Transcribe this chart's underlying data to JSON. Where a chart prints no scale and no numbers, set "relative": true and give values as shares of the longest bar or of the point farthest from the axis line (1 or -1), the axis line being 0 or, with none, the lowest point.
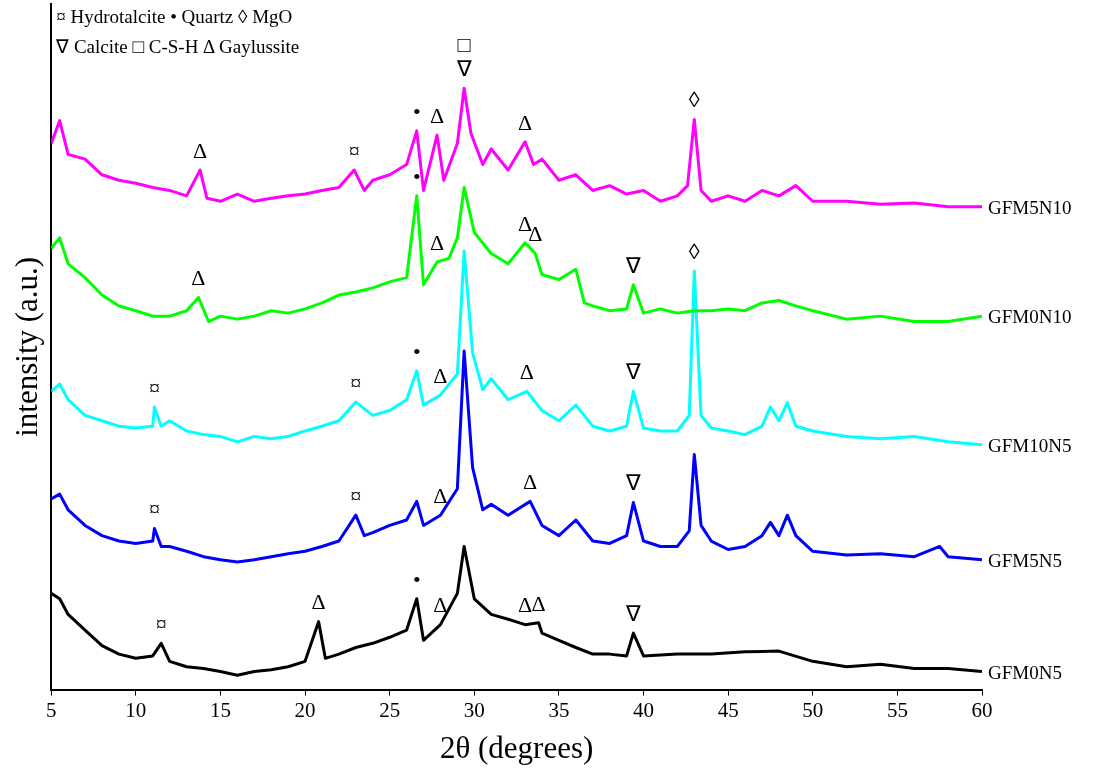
{
  "chart_data": {
    "type": "line",
    "relative": true,
    "xlabel": "2θ (degrees)",
    "ylabel": "intensity (a.u.)",
    "xlim": [
      5,
      60
    ],
    "xticks": [
      5,
      10,
      15,
      20,
      25,
      30,
      35,
      40,
      45,
      50,
      55,
      60
    ],
    "tick_labels": "x",
    "grid": false,
    "legend": false,
    "series": [
      {
        "name": "GFM5N10",
        "color": "#ff00ff",
        "x": [
          5,
          5.5,
          6,
          7,
          8,
          9,
          10,
          11,
          12,
          13,
          13.8,
          14.2,
          15,
          16,
          17,
          18,
          19,
          20,
          21,
          22,
          22.9,
          23.5,
          24,
          25,
          26,
          26.6,
          27,
          27.8,
          28.2,
          29,
          29.4,
          29.8,
          30.5,
          31,
          32,
          33,
          33.5,
          34,
          35,
          36,
          37,
          38,
          39,
          40,
          41,
          42,
          42.6,
          43,
          43.4,
          44,
          45,
          46,
          47,
          48,
          49,
          50,
          52,
          54,
          56,
          58,
          60
        ],
        "values": [
          0.908,
          0.946,
          0.89,
          0.882,
          0.856,
          0.847,
          0.842,
          0.835,
          0.83,
          0.821,
          0.864,
          0.817,
          0.812,
          0.824,
          0.812,
          0.817,
          0.821,
          0.824,
          0.83,
          0.835,
          0.864,
          0.83,
          0.847,
          0.856,
          0.873,
          0.929,
          0.83,
          0.922,
          0.847,
          0.908,
          1.0,
          0.925,
          0.873,
          0.899,
          0.864,
          0.911,
          0.873,
          0.882,
          0.847,
          0.856,
          0.83,
          0.838,
          0.824,
          0.83,
          0.812,
          0.821,
          0.838,
          0.948,
          0.83,
          0.812,
          0.821,
          0.812,
          0.83,
          0.821,
          0.838,
          0.812,
          0.812,
          0.807,
          0.809,
          0.803,
          0.803
        ]
      },
      {
        "name": "GFM0N10",
        "color": "#00ff00",
        "x": [
          5,
          5.5,
          6,
          7,
          8,
          9,
          10,
          11,
          12,
          13,
          13.7,
          14.3,
          15,
          16,
          17,
          18,
          19,
          20,
          21,
          22,
          23,
          24,
          25,
          26,
          26.6,
          27,
          27.8,
          28.5,
          29,
          29.4,
          30,
          31,
          32,
          33,
          33.6,
          34,
          35,
          36,
          36.5,
          37,
          38,
          39,
          39.4,
          40,
          41,
          42,
          43,
          44,
          45,
          46,
          47,
          48,
          49,
          50,
          52,
          54,
          56,
          58,
          60
        ],
        "values": [
          0.734,
          0.751,
          0.708,
          0.685,
          0.656,
          0.638,
          0.63,
          0.621,
          0.621,
          0.63,
          0.652,
          0.612,
          0.621,
          0.616,
          0.621,
          0.63,
          0.626,
          0.633,
          0.643,
          0.656,
          0.661,
          0.668,
          0.678,
          0.685,
          0.821,
          0.673,
          0.711,
          0.717,
          0.751,
          0.835,
          0.76,
          0.725,
          0.708,
          0.743,
          0.725,
          0.69,
          0.682,
          0.699,
          0.643,
          0.638,
          0.63,
          0.633,
          0.673,
          0.626,
          0.633,
          0.626,
          0.63,
          0.63,
          0.633,
          0.63,
          0.643,
          0.647,
          0.638,
          0.63,
          0.616,
          0.621,
          0.612,
          0.612,
          0.621
        ]
      },
      {
        "name": "GFM10N5",
        "color": "#00ffff",
        "x": [
          5,
          5.5,
          6,
          7,
          8,
          9,
          10,
          11,
          11.1,
          11.5,
          12,
          13,
          14,
          15,
          16,
          17,
          18,
          19,
          20,
          21,
          22,
          23,
          24,
          25,
          26,
          26.6,
          27,
          28,
          29,
          29.4,
          29.9,
          30.5,
          31,
          32,
          33.1,
          34,
          35,
          36,
          37,
          38,
          39,
          39.4,
          40,
          41,
          42,
          42.7,
          43,
          43.4,
          44,
          45,
          46,
          47,
          47.5,
          48,
          48.5,
          49,
          50,
          52,
          54,
          56,
          58,
          60
        ],
        "values": [
          0.496,
          0.508,
          0.482,
          0.456,
          0.447,
          0.438,
          0.435,
          0.438,
          0.47,
          0.438,
          0.447,
          0.43,
          0.424,
          0.421,
          0.412,
          0.421,
          0.417,
          0.421,
          0.43,
          0.438,
          0.447,
          0.478,
          0.456,
          0.464,
          0.482,
          0.53,
          0.473,
          0.49,
          0.525,
          0.729,
          0.56,
          0.499,
          0.517,
          0.482,
          0.496,
          0.464,
          0.447,
          0.473,
          0.438,
          0.43,
          0.438,
          0.496,
          0.435,
          0.43,
          0.43,
          0.456,
          0.696,
          0.456,
          0.435,
          0.43,
          0.424,
          0.438,
          0.47,
          0.447,
          0.477,
          0.438,
          0.43,
          0.421,
          0.417,
          0.421,
          0.412,
          0.407
        ]
      },
      {
        "name": "GFM5N5",
        "color": "#0000ff",
        "x": [
          5,
          5.5,
          6,
          7,
          8,
          9,
          10,
          11,
          11.1,
          11.5,
          12,
          13,
          14,
          15,
          16,
          17,
          18,
          19,
          20,
          21,
          22,
          23,
          23.5,
          24,
          25,
          26,
          26.6,
          27,
          28,
          29,
          29.4,
          29.9,
          30.5,
          31,
          32,
          33.3,
          34,
          35,
          36,
          37,
          38,
          39,
          39.4,
          40,
          41,
          42,
          42.7,
          43,
          43.4,
          44,
          45,
          46,
          47,
          47.5,
          48,
          48.5,
          49,
          50,
          52,
          54,
          56,
          57.5,
          58,
          60
        ],
        "values": [
          0.317,
          0.325,
          0.299,
          0.273,
          0.256,
          0.247,
          0.243,
          0.247,
          0.268,
          0.238,
          0.238,
          0.23,
          0.221,
          0.216,
          0.212,
          0.216,
          0.221,
          0.226,
          0.23,
          0.238,
          0.247,
          0.29,
          0.256,
          0.261,
          0.273,
          0.282,
          0.313,
          0.273,
          0.29,
          0.334,
          0.563,
          0.369,
          0.299,
          0.308,
          0.29,
          0.313,
          0.273,
          0.256,
          0.282,
          0.247,
          0.243,
          0.256,
          0.311,
          0.247,
          0.238,
          0.238,
          0.264,
          0.391,
          0.273,
          0.247,
          0.233,
          0.238,
          0.256,
          0.278,
          0.256,
          0.29,
          0.256,
          0.23,
          0.224,
          0.226,
          0.221,
          0.238,
          0.221,
          0.216
        ]
      },
      {
        "name": "GFM0N5",
        "color": "#000000",
        "x": [
          5,
          5.5,
          6,
          7,
          8,
          9,
          10,
          11,
          11.5,
          12,
          13,
          14,
          15,
          16,
          17,
          18,
          19,
          20,
          20.8,
          21.2,
          22,
          23,
          24,
          25,
          26,
          26.6,
          27,
          28,
          29,
          29.4,
          30,
          31,
          32,
          33,
          33.8,
          34,
          35,
          36,
          37,
          38,
          39,
          39.4,
          40,
          42,
          44,
          46,
          48,
          50,
          52,
          54,
          56,
          58,
          60
        ],
        "values": [
          0.16,
          0.151,
          0.125,
          0.099,
          0.073,
          0.059,
          0.052,
          0.056,
          0.077,
          0.047,
          0.038,
          0.035,
          0.03,
          0.024,
          0.03,
          0.033,
          0.038,
          0.047,
          0.113,
          0.052,
          0.059,
          0.07,
          0.077,
          0.087,
          0.099,
          0.151,
          0.082,
          0.108,
          0.16,
          0.238,
          0.151,
          0.125,
          0.117,
          0.108,
          0.111,
          0.094,
          0.082,
          0.07,
          0.059,
          0.059,
          0.056,
          0.094,
          0.056,
          0.059,
          0.059,
          0.063,
          0.064,
          0.047,
          0.038,
          0.042,
          0.035,
          0.035,
          0.03
        ]
      }
    ],
    "annotations": [
      "¤ Hydrotalcite • Quartz ◊ MgO",
      "∇ Calcite □ C-S-H Δ Gaylussite",
      {
        "text": "Δ",
        "x": 13.8,
        "y": 0.864
      },
      {
        "text": "¤",
        "x": 22.9,
        "y": 0.864
      },
      {
        "text": "•",
        "x": 26.6,
        "y": 0.929
      },
      {
        "text": "Δ",
        "x": 27.8,
        "y": 0.922
      },
      {
        "text": "∇",
        "x": 29.4,
        "y": 1.0
      },
      {
        "text": "□",
        "x": 29.4,
        "y": 1.0
      },
      {
        "text": "Δ",
        "x": 33,
        "y": 0.911
      },
      {
        "text": "◊",
        "x": 43,
        "y": 0.948
      },
      {
        "text": "Δ",
        "x": 13.7,
        "y": 0.652
      },
      {
        "text": "•",
        "x": 26.6,
        "y": 0.821
      },
      {
        "text": "Δ",
        "x": 27.8,
        "y": 0.711
      },
      {
        "text": "Δ",
        "x": 33,
        "y": 0.743
      },
      {
        "text": "Δ",
        "x": 33.6,
        "y": 0.725
      },
      {
        "text": "∇",
        "x": 39.4,
        "y": 0.673
      },
      {
        "text": "◊",
        "x": 43,
        "y": 0.696
      },
      {
        "text": "¤",
        "x": 11.1,
        "y": 0.47
      },
      {
        "text": "¤",
        "x": 23,
        "y": 0.478
      },
      {
        "text": "•",
        "x": 26.6,
        "y": 0.53
      },
      {
        "text": "Δ",
        "x": 28,
        "y": 0.49
      },
      {
        "text": "Δ",
        "x": 33.1,
        "y": 0.496
      },
      {
        "text": "∇",
        "x": 39.4,
        "y": 0.496
      },
      {
        "text": "¤",
        "x": 11.1,
        "y": 0.268
      },
      {
        "text": "¤",
        "x": 23,
        "y": 0.29
      },
      {
        "text": "Δ",
        "x": 28,
        "y": 0.29
      },
      {
        "text": "Δ",
        "x": 33.3,
        "y": 0.313
      },
      {
        "text": "∇",
        "x": 39.4,
        "y": 0.311
      },
      {
        "text": "¤",
        "x": 11.5,
        "y": 0.077
      },
      {
        "text": "Δ",
        "x": 20.8,
        "y": 0.113
      },
      {
        "text": "•",
        "x": 26.6,
        "y": 0.151
      },
      {
        "text": "Δ",
        "x": 28,
        "y": 0.108
      },
      {
        "text": "Δ",
        "x": 33,
        "y": 0.108
      },
      {
        "text": "Δ",
        "x": 33.8,
        "y": 0.111
      },
      {
        "text": "∇",
        "x": 39.4,
        "y": 0.094
      }
    ]
  }
}
